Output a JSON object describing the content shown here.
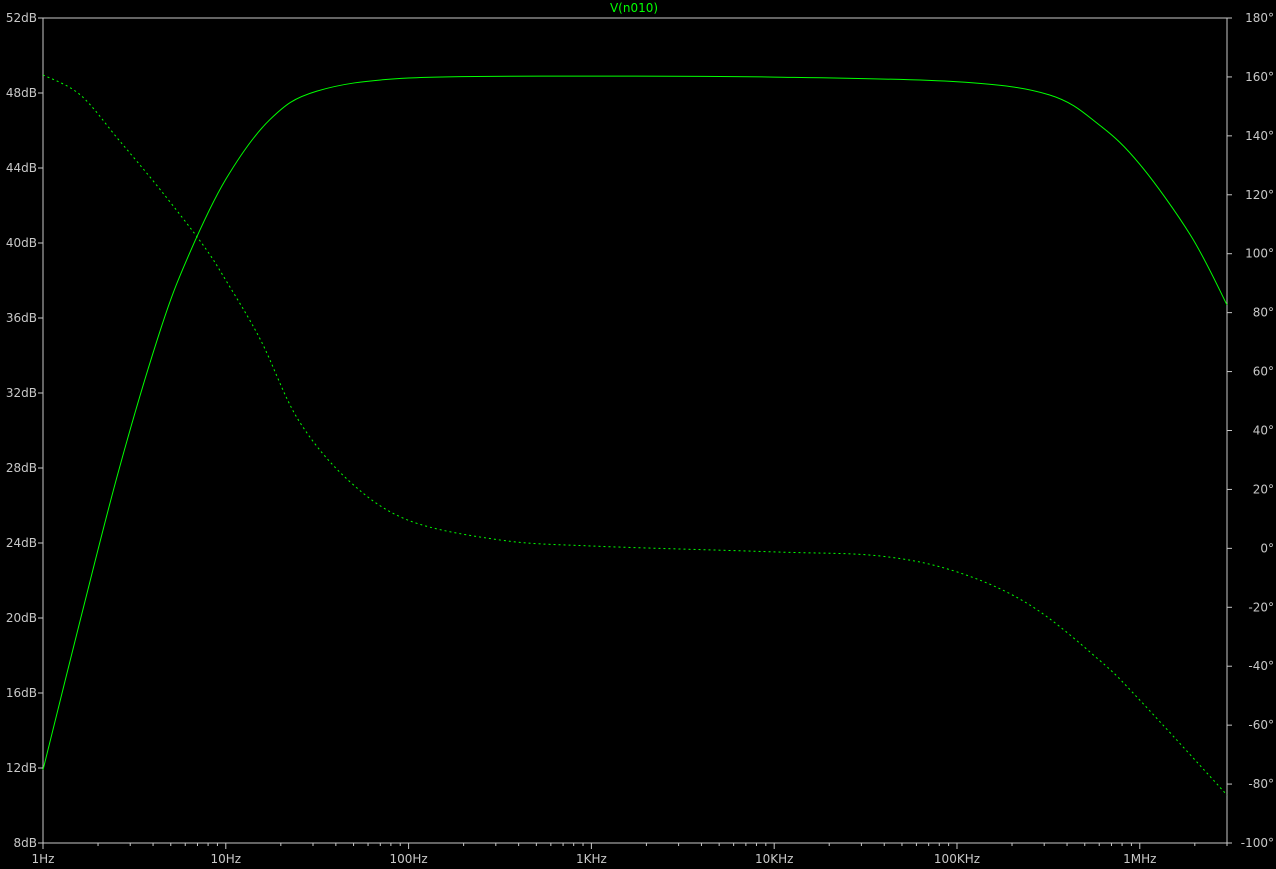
{
  "chart_data": {
    "type": "line",
    "title": "V(n010)",
    "title_color": "#00ff00",
    "xscale": "log",
    "xlim": [
      1,
      3000000
    ],
    "x_ticks": [
      {
        "value": 1,
        "label": "1Hz"
      },
      {
        "value": 10,
        "label": "10Hz"
      },
      {
        "value": 100,
        "label": "100Hz"
      },
      {
        "value": 1000,
        "label": "1KHz"
      },
      {
        "value": 10000,
        "label": "10KHz"
      },
      {
        "value": 100000,
        "label": "100KHz"
      },
      {
        "value": 1000000,
        "label": "1MHz"
      }
    ],
    "ylim_left": [
      8,
      52
    ],
    "y_ticks_left": [
      "8dB",
      "12dB",
      "16dB",
      "20dB",
      "24dB",
      "28dB",
      "32dB",
      "36dB",
      "40dB",
      "44dB",
      "48dB",
      "52dB"
    ],
    "y_tick_values_left": [
      8,
      12,
      16,
      20,
      24,
      28,
      32,
      36,
      40,
      44,
      48,
      52
    ],
    "ylim_right": [
      -100,
      180
    ],
    "y_ticks_right": [
      "-100°",
      "-80°",
      "-60°",
      "-40°",
      "-20°",
      "0°",
      "20°",
      "40°",
      "60°",
      "80°",
      "100°",
      "120°",
      "140°",
      "160°",
      "180°"
    ],
    "y_tick_values_right": [
      -100,
      -80,
      -60,
      -40,
      -20,
      0,
      20,
      40,
      60,
      80,
      100,
      120,
      140,
      160,
      180
    ],
    "grid": false,
    "series": [
      {
        "axis": "left",
        "style": "solid",
        "color": "#00ff00",
        "x": [
          1,
          1.6,
          2.6,
          4.4,
          6.3,
          10,
          17.5,
          31.5,
          100,
          1000,
          10000,
          100000,
          320000,
          600000,
          1000000,
          1900000,
          3000000
        ],
        "y": [
          11.9,
          19.9,
          27.9,
          35.4,
          39.4,
          43.4,
          46.6,
          48.1,
          48.8,
          48.9,
          48.85,
          48.6,
          47.9,
          46.3,
          44.2,
          40.4,
          36.7
        ]
      },
      {
        "axis": "right",
        "style": "dashed",
        "color": "#00ff00",
        "x": [
          1,
          1.6,
          2.6,
          4.4,
          7.5,
          10,
          15.5,
          25,
          47,
          100,
          320,
          1000,
          10000,
          38000,
          100000,
          250000,
          600000,
          1000000,
          3000000
        ],
        "y": [
          160.7,
          153.9,
          138.6,
          121.6,
          103,
          91,
          70.7,
          43.5,
          23,
          9.5,
          2.8,
          0.8,
          -1.2,
          -2.6,
          -8,
          -19.2,
          -37.9,
          -51.5,
          -83.7
        ]
      }
    ]
  }
}
